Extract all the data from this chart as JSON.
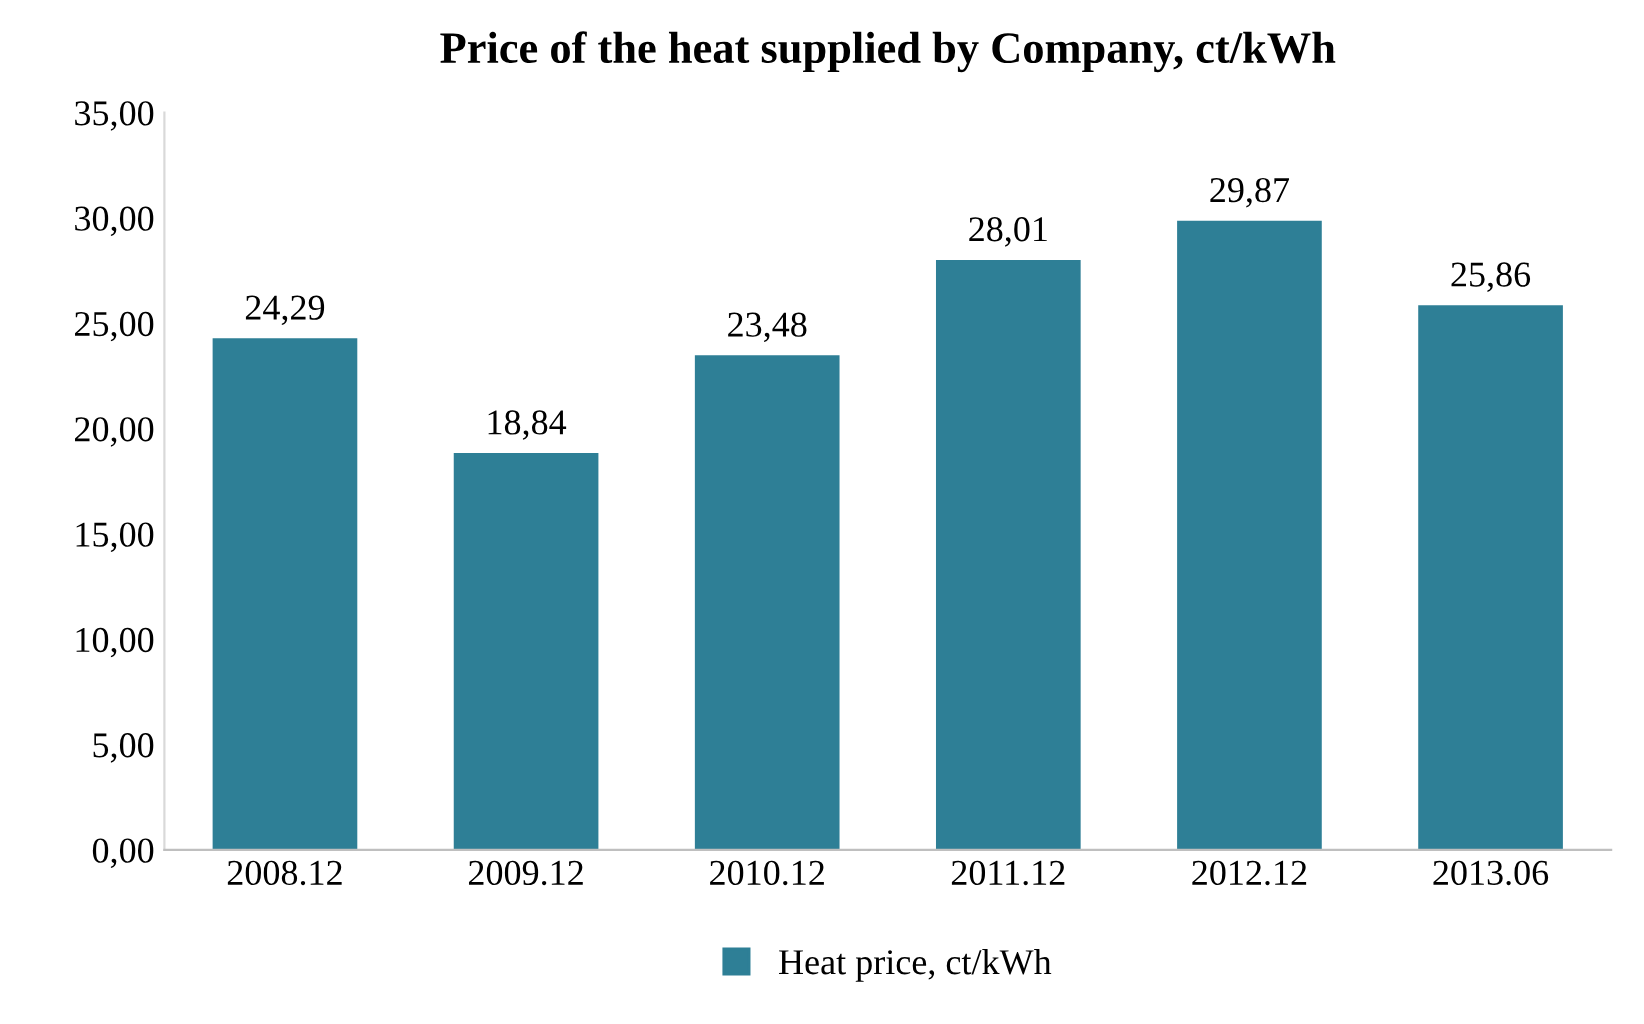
{
  "chart_data": {
    "type": "bar",
    "title": "Price of the heat supplied by Company, ct/kWh",
    "categories": [
      "2008.12",
      "2009.12",
      "2010.12",
      "2011.12",
      "2012.12",
      "2013.06"
    ],
    "series": [
      {
        "name": "Heat price, ct/kWh",
        "color": "#2e7f96",
        "values": [
          24.29,
          18.84,
          23.48,
          28.01,
          29.87,
          25.86
        ],
        "value_labels": [
          "24,29",
          "18,84",
          "23,48",
          "28,01",
          "29,87",
          "25,86"
        ]
      }
    ],
    "ylim": [
      0,
      35
    ],
    "yticks": [
      {
        "value": 0,
        "label": "0,00"
      },
      {
        "value": 5,
        "label": "5,00"
      },
      {
        "value": 10,
        "label": "10,00"
      },
      {
        "value": 15,
        "label": "15,00"
      },
      {
        "value": 20,
        "label": "20,00"
      },
      {
        "value": 25,
        "label": "25,00"
      },
      {
        "value": 30,
        "label": "30,00"
      },
      {
        "value": 35,
        "label": "35,00"
      }
    ],
    "grid": false,
    "legend": "bottom"
  }
}
